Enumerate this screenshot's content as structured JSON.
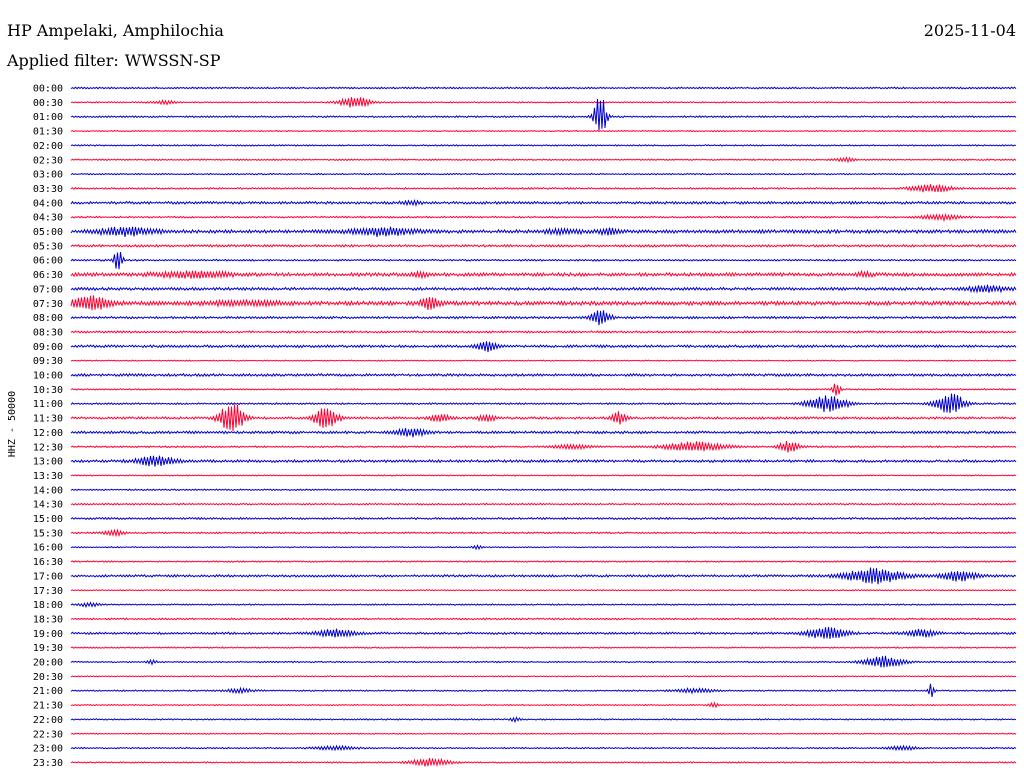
{
  "header": {
    "station": "HP Ampelaki, Amphilochia",
    "date": "2025-11-04",
    "filter_label": "Applied filter:",
    "filter_value": "WWSSN-SP"
  },
  "colors": {
    "trace_a": "#0000cc",
    "trace_b": "#ff0033",
    "text": "#000000",
    "background": "#ffffff"
  },
  "chart_data": {
    "type": "line",
    "ylabel": "HHZ - 50000",
    "grid": false,
    "legend": "none",
    "rows": [
      {
        "time": "00:00",
        "noise": 0.6,
        "events": []
      },
      {
        "time": "00:30",
        "noise": 0.5,
        "events": [
          {
            "t": 0.3,
            "amp": 6,
            "dur": 0.015
          },
          {
            "t": 0.1,
            "amp": 2,
            "dur": 0.01
          }
        ]
      },
      {
        "time": "01:00",
        "noise": 0.6,
        "events": [
          {
            "t": 0.56,
            "amp": 24,
            "dur": 0.006
          }
        ]
      },
      {
        "time": "01:30",
        "noise": 0.4,
        "events": []
      },
      {
        "time": "02:00",
        "noise": 0.5,
        "events": []
      },
      {
        "time": "02:30",
        "noise": 0.5,
        "events": [
          {
            "t": 0.82,
            "amp": 2,
            "dur": 0.01
          }
        ]
      },
      {
        "time": "03:00",
        "noise": 0.5,
        "events": []
      },
      {
        "time": "03:30",
        "noise": 0.6,
        "events": [
          {
            "t": 0.91,
            "amp": 4,
            "dur": 0.02
          }
        ]
      },
      {
        "time": "04:00",
        "noise": 0.9,
        "events": [
          {
            "t": 0.36,
            "amp": 2,
            "dur": 0.01
          }
        ]
      },
      {
        "time": "04:30",
        "noise": 0.6,
        "events": [
          {
            "t": 0.92,
            "amp": 3,
            "dur": 0.02
          }
        ]
      },
      {
        "time": "05:00",
        "noise": 1.2,
        "events": [
          {
            "t": 0.06,
            "amp": 4,
            "dur": 0.03
          },
          {
            "t": 0.33,
            "amp": 4,
            "dur": 0.03
          },
          {
            "t": 0.52,
            "amp": 2,
            "dur": 0.02
          },
          {
            "t": 0.57,
            "amp": 3,
            "dur": 0.01
          }
        ]
      },
      {
        "time": "05:30",
        "noise": 0.8,
        "events": []
      },
      {
        "time": "06:00",
        "noise": 0.6,
        "events": [
          {
            "t": 0.05,
            "amp": 14,
            "dur": 0.004
          }
        ]
      },
      {
        "time": "06:30",
        "noise": 1.2,
        "events": [
          {
            "t": 0.13,
            "amp": 3,
            "dur": 0.04
          },
          {
            "t": 0.37,
            "amp": 2,
            "dur": 0.01
          },
          {
            "t": 0.84,
            "amp": 2,
            "dur": 0.01
          }
        ]
      },
      {
        "time": "07:00",
        "noise": 1.0,
        "events": [
          {
            "t": 0.97,
            "amp": 3,
            "dur": 0.02
          }
        ]
      },
      {
        "time": "07:30",
        "noise": 1.4,
        "events": [
          {
            "t": 0.02,
            "amp": 7,
            "dur": 0.02
          },
          {
            "t": 0.38,
            "amp": 6,
            "dur": 0.01
          },
          {
            "t": 0.18,
            "amp": 2,
            "dur": 0.04
          }
        ]
      },
      {
        "time": "08:00",
        "noise": 0.8,
        "events": [
          {
            "t": 0.56,
            "amp": 8,
            "dur": 0.01
          }
        ]
      },
      {
        "time": "08:30",
        "noise": 0.7,
        "events": []
      },
      {
        "time": "09:00",
        "noise": 0.9,
        "events": [
          {
            "t": 0.44,
            "amp": 5,
            "dur": 0.01
          }
        ]
      },
      {
        "time": "09:30",
        "noise": 0.4,
        "events": []
      },
      {
        "time": "10:00",
        "noise": 0.9,
        "events": []
      },
      {
        "time": "10:30",
        "noise": 0.5,
        "events": [
          {
            "t": 0.81,
            "amp": 7,
            "dur": 0.004
          }
        ]
      },
      {
        "time": "11:00",
        "noise": 0.6,
        "events": [
          {
            "t": 0.8,
            "amp": 8,
            "dur": 0.02
          },
          {
            "t": 0.93,
            "amp": 11,
            "dur": 0.015
          }
        ]
      },
      {
        "time": "11:30",
        "noise": 0.8,
        "events": [
          {
            "t": 0.17,
            "amp": 18,
            "dur": 0.012
          },
          {
            "t": 0.27,
            "amp": 11,
            "dur": 0.012
          },
          {
            "t": 0.39,
            "amp": 4,
            "dur": 0.01
          },
          {
            "t": 0.44,
            "amp": 3,
            "dur": 0.01
          },
          {
            "t": 0.58,
            "amp": 6,
            "dur": 0.008
          }
        ]
      },
      {
        "time": "12:00",
        "noise": 0.9,
        "events": [
          {
            "t": 0.36,
            "amp": 5,
            "dur": 0.015
          }
        ]
      },
      {
        "time": "12:30",
        "noise": 0.6,
        "events": [
          {
            "t": 0.66,
            "amp": 5,
            "dur": 0.03
          },
          {
            "t": 0.76,
            "amp": 6,
            "dur": 0.01
          },
          {
            "t": 0.53,
            "amp": 2,
            "dur": 0.02
          }
        ]
      },
      {
        "time": "13:00",
        "noise": 0.9,
        "events": [
          {
            "t": 0.09,
            "amp": 5,
            "dur": 0.02
          }
        ]
      },
      {
        "time": "13:30",
        "noise": 0.4,
        "events": []
      },
      {
        "time": "14:00",
        "noise": 0.5,
        "events": []
      },
      {
        "time": "14:30",
        "noise": 0.6,
        "events": []
      },
      {
        "time": "15:00",
        "noise": 0.7,
        "events": []
      },
      {
        "time": "15:30",
        "noise": 0.6,
        "events": [
          {
            "t": 0.045,
            "amp": 3,
            "dur": 0.01
          }
        ]
      },
      {
        "time": "16:00",
        "noise": 0.4,
        "events": [
          {
            "t": 0.43,
            "amp": 2,
            "dur": 0.005
          }
        ]
      },
      {
        "time": "16:30",
        "noise": 0.5,
        "events": []
      },
      {
        "time": "17:00",
        "noise": 0.8,
        "events": [
          {
            "t": 0.85,
            "amp": 8,
            "dur": 0.03
          },
          {
            "t": 0.94,
            "amp": 5,
            "dur": 0.02
          }
        ]
      },
      {
        "time": "17:30",
        "noise": 0.4,
        "events": []
      },
      {
        "time": "18:00",
        "noise": 0.5,
        "events": [
          {
            "t": 0.02,
            "amp": 2,
            "dur": 0.01
          }
        ]
      },
      {
        "time": "18:30",
        "noise": 0.6,
        "events": []
      },
      {
        "time": "19:00",
        "noise": 0.8,
        "events": [
          {
            "t": 0.28,
            "amp": 4,
            "dur": 0.02
          },
          {
            "t": 0.8,
            "amp": 6,
            "dur": 0.02
          },
          {
            "t": 0.9,
            "amp": 4,
            "dur": 0.015
          }
        ]
      },
      {
        "time": "19:30",
        "noise": 0.5,
        "events": []
      },
      {
        "time": "20:00",
        "noise": 0.5,
        "events": [
          {
            "t": 0.085,
            "amp": 2,
            "dur": 0.005
          },
          {
            "t": 0.86,
            "amp": 6,
            "dur": 0.02
          }
        ]
      },
      {
        "time": "20:30",
        "noise": 0.4,
        "events": []
      },
      {
        "time": "21:00",
        "noise": 0.5,
        "events": [
          {
            "t": 0.18,
            "amp": 2,
            "dur": 0.015
          },
          {
            "t": 0.66,
            "amp": 2,
            "dur": 0.02
          },
          {
            "t": 0.91,
            "amp": 7,
            "dur": 0.003
          }
        ]
      },
      {
        "time": "21:30",
        "noise": 0.4,
        "events": [
          {
            "t": 0.68,
            "amp": 2,
            "dur": 0.005
          }
        ]
      },
      {
        "time": "22:00",
        "noise": 0.5,
        "events": [
          {
            "t": 0.47,
            "amp": 2,
            "dur": 0.005
          }
        ]
      },
      {
        "time": "22:30",
        "noise": 0.4,
        "events": []
      },
      {
        "time": "23:00",
        "noise": 0.5,
        "events": [
          {
            "t": 0.28,
            "amp": 2,
            "dur": 0.02
          },
          {
            "t": 0.88,
            "amp": 2,
            "dur": 0.015
          }
        ]
      },
      {
        "time": "23:30",
        "noise": 0.5,
        "events": [
          {
            "t": 0.38,
            "amp": 4,
            "dur": 0.02
          }
        ]
      }
    ]
  }
}
